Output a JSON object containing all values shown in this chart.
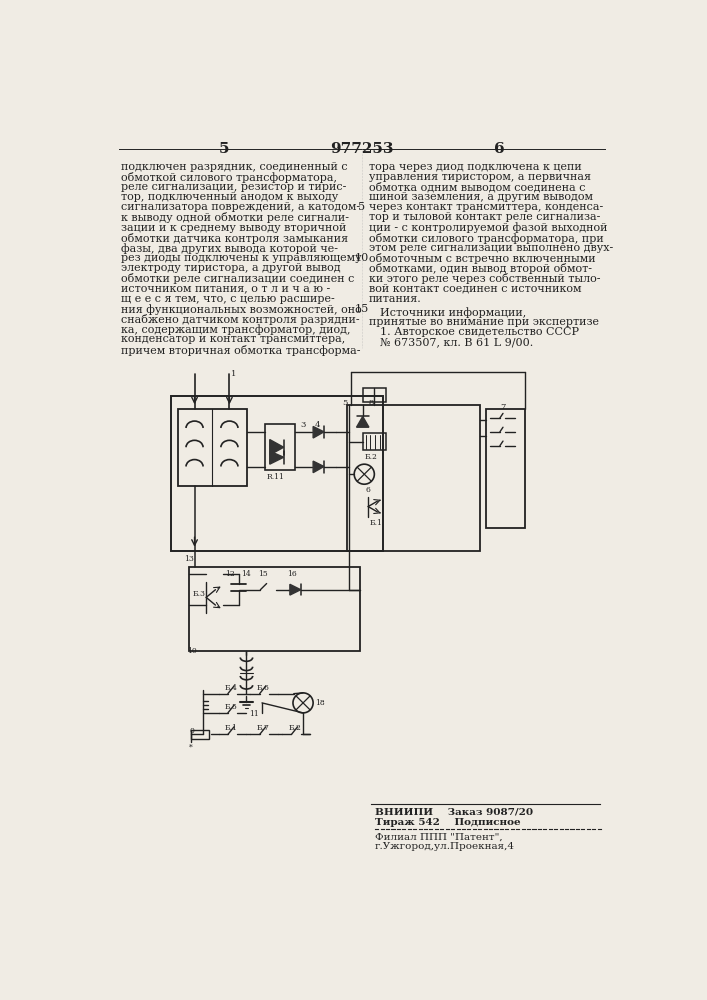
{
  "title": "977253",
  "page_left": "5",
  "page_right": "6",
  "bg_color": "#f0ece4",
  "text_color": "#1a1a1a",
  "left_col": [
    "подключен разрядник, соединенный с",
    "обмоткой силового трансформатора,",
    "реле сигнализации, резистор и тирис-",
    "тор, подключенный анодом к выходу",
    "сигнализатора повреждений, а катодом-",
    "к выводу одной обмотки реле сигнали-",
    "зации и к среднему выводу вторичной",
    "обмотки датчика контроля замыкания",
    "фазы, два других вывода которой че-",
    "рез диоды подключены к управляющему",
    "электроду тиристора, а другой вывод",
    "обмотки реле сигнализации соединен с",
    "источником питания, о т л и ч а ю -",
    "щ е е с я тем, что, с целью расшире-",
    "ния функциональных возможностей, оно",
    "снабжено датчиком контроля разрядни-",
    "ка, содержащим трансформатор, диод,",
    "конденсатор и контакт трансмиттера,",
    "причем вторичная обмотка трансформа-"
  ],
  "right_col": [
    "тора через диод подключена к цепи",
    "управления тиристором, а первичная",
    "обмотка одним выводом соединена с",
    "шиной заземления, а другим выводом",
    "через контакт трансмиттера, конденса-",
    "тор и тыловой контакт реле сигнализа-",
    "ции - с контролируемой фазой выходной",
    "обмотки силового трансформатора, при",
    "этом реле сигнализации выполнено двух-",
    "обмоточным с встречно включенными",
    "обмотками, один вывод второй обмот-",
    "ки этого реле через собственный тыло-",
    "вой контакт соединен с источником",
    "питания."
  ],
  "src_hdr": "Источники информации,",
  "src_txt": "принятые во внимание при экспертизе",
  "src1": "1. Авторское свидетельство СССР",
  "src2": "№ 673507, кл. В 61 L 9/00.",
  "footer1": "ВНИИПИ    Заказ 9087/20",
  "footer2": "Тираж 542    Подписное",
  "footer3": "Филиал ППП \"Патент\",",
  "footer4": "г.Ужгород,ул.Проекная,4"
}
